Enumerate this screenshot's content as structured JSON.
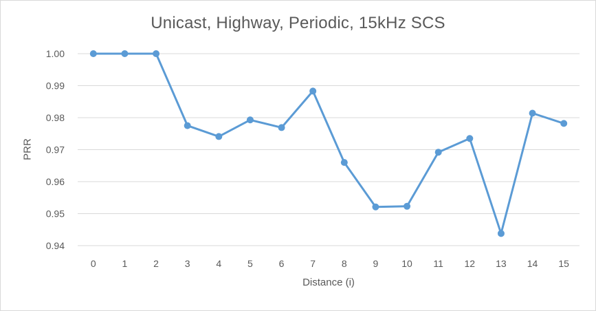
{
  "chart_data": {
    "type": "line",
    "title": "Unicast, Highway, Periodic, 15kHz SCS",
    "xlabel": "Distance (i)",
    "ylabel": "PRR",
    "x": [
      0,
      1,
      2,
      3,
      4,
      5,
      6,
      7,
      8,
      9,
      10,
      11,
      12,
      13,
      14,
      15
    ],
    "x_tick_labels": [
      "0",
      "1",
      "2",
      "3",
      "4",
      "5",
      "6",
      "7",
      "8",
      "9",
      "10",
      "11",
      "12",
      "13",
      "14",
      "15"
    ],
    "y_tick_labels": [
      "1.00",
      "0.99",
      "0.98",
      "0.97",
      "0.96",
      "0.95",
      "0.94"
    ],
    "y_ticks": [
      1.0,
      0.99,
      0.98,
      0.97,
      0.96,
      0.95,
      0.94
    ],
    "ylim": [
      0.94,
      1.0
    ],
    "grid": "horizontal",
    "legend": "none",
    "series": [
      {
        "values": [
          1.0,
          1.0,
          1.0,
          0.9775,
          0.9741,
          0.9793,
          0.9769,
          0.9883,
          0.966,
          0.9521,
          0.9523,
          0.9692,
          0.9735,
          0.9438,
          0.9814,
          0.9782
        ],
        "color": "#5b9bd5"
      }
    ]
  },
  "colors": {
    "line": "#5b9bd5",
    "grid": "#d9d9d9",
    "text": "#595959"
  }
}
